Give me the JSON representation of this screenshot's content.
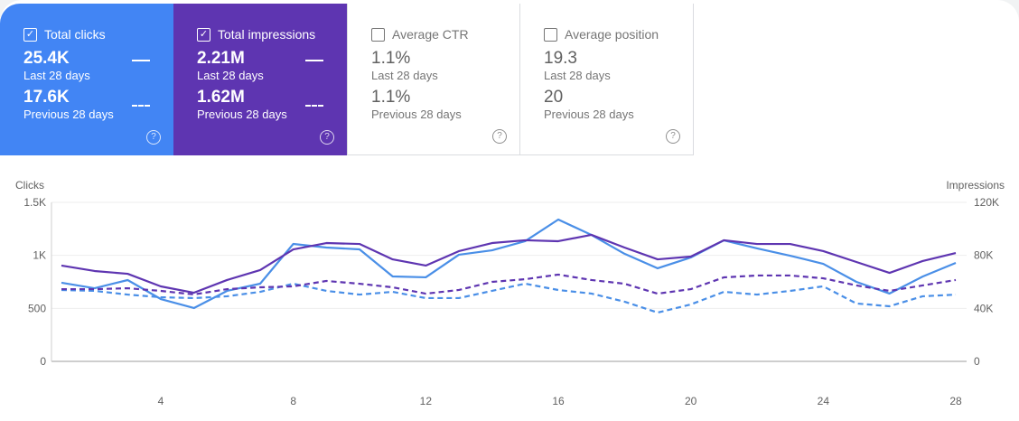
{
  "cards": [
    {
      "label": "Total clicks",
      "checked": true,
      "current": "25.4K",
      "current_label": "Last 28 days",
      "previous": "17.6K",
      "previous_label": "Previous 28 days"
    },
    {
      "label": "Total impressions",
      "checked": true,
      "current": "2.21M",
      "current_label": "Last 28 days",
      "previous": "1.62M",
      "previous_label": "Previous 28 days"
    },
    {
      "label": "Average CTR",
      "checked": false,
      "current": "1.1%",
      "current_label": "Last 28 days",
      "previous": "1.1%",
      "previous_label": "Previous 28 days"
    },
    {
      "label": "Average position",
      "checked": false,
      "current": "19.3",
      "current_label": "Last 28 days",
      "previous": "20",
      "previous_label": "Previous 28 days"
    }
  ],
  "icons": {
    "check": "✓",
    "help": "?"
  },
  "colors": {
    "clicks": "#4a8fe7",
    "impressions": "#5e35b1",
    "clicks_card": "#4285f4",
    "impressions_card": "#5e35b1"
  },
  "chart_data": {
    "type": "line",
    "x": [
      1,
      2,
      3,
      4,
      5,
      6,
      7,
      8,
      9,
      10,
      11,
      12,
      13,
      14,
      15,
      16,
      17,
      18,
      19,
      20,
      21,
      22,
      23,
      24,
      25,
      26,
      27,
      28
    ],
    "xticks": [
      "4",
      "8",
      "12",
      "16",
      "20",
      "24",
      "28"
    ],
    "xtick_values": [
      4,
      8,
      12,
      16,
      20,
      24,
      28
    ],
    "ylabel_left": "Clicks",
    "ylim_left": [
      0,
      1500
    ],
    "yticks_left": [
      "0",
      "500",
      "1K",
      "1.5K"
    ],
    "ylabel_right": "Impressions",
    "ylim_right": [
      0,
      120000
    ],
    "yticks_right": [
      "0",
      "40K",
      "80K",
      "120K"
    ],
    "series": [
      {
        "name": "Clicks (Last 28 days)",
        "axis": "left",
        "style": "solid",
        "color": "#4a8fe7",
        "values": [
          742,
          690,
          767,
          588,
          503,
          665,
          733,
          1108,
          1074,
          1057,
          801,
          793,
          1006,
          1048,
          1134,
          1338,
          1193,
          1015,
          878,
          980,
          1142,
          1066,
          997,
          920,
          750,
          640,
          800,
          929
        ]
      },
      {
        "name": "Impressions (Last 28 days)",
        "axis": "right",
        "style": "solid",
        "color": "#5e35b1",
        "values": [
          72300,
          68200,
          66100,
          56600,
          51800,
          61400,
          68900,
          84500,
          89300,
          88600,
          77000,
          72300,
          83200,
          89300,
          91400,
          90700,
          95500,
          85900,
          77000,
          79100,
          91400,
          88600,
          88600,
          83200,
          75000,
          66800,
          75700,
          81800
        ]
      },
      {
        "name": "Clicks (Previous 28 days)",
        "axis": "left",
        "style": "dashed",
        "color": "#4a8fe7",
        "values": [
          673,
          665,
          630,
          605,
          597,
          614,
          656,
          733,
          665,
          630,
          656,
          597,
          597,
          665,
          733,
          673,
          640,
          563,
          460,
          537,
          656,
          630,
          665,
          708,
          546,
          520,
          614,
          630
        ]
      },
      {
        "name": "Impressions (Previous 28 days)",
        "axis": "right",
        "style": "dashed",
        "color": "#5e35b1",
        "values": [
          54500,
          54500,
          55200,
          53200,
          50500,
          54500,
          55900,
          56600,
          60700,
          58600,
          55900,
          51100,
          53900,
          60000,
          62000,
          65500,
          61400,
          58600,
          51100,
          54500,
          63400,
          64800,
          64800,
          62700,
          57300,
          53200,
          57300,
          61400
        ]
      }
    ]
  }
}
